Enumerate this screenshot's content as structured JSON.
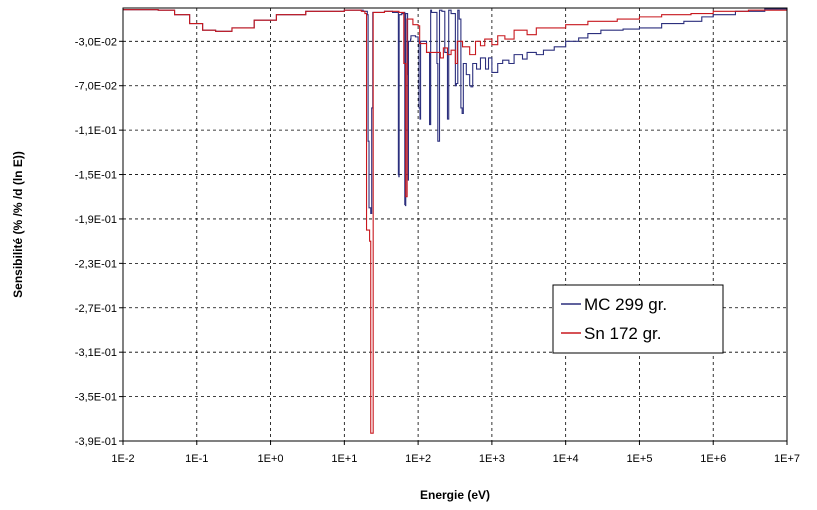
{
  "chart_data": {
    "type": "line",
    "xlabel": "Energie (eV)",
    "ylabel": "Sensibilité (% /% /d (ln E))",
    "x_scale": "log",
    "xlim": [
      0.01,
      10000000
    ],
    "ylim": [
      -0.39,
      0.0
    ],
    "grid": true,
    "legend_placement": "lower-right",
    "x_ticks": [
      {
        "value": 0.01,
        "label": "1E-2"
      },
      {
        "value": 0.1,
        "label": "1E-1"
      },
      {
        "value": 1,
        "label": "1E+0"
      },
      {
        "value": 10,
        "label": "1E+1"
      },
      {
        "value": 100,
        "label": "1E+2"
      },
      {
        "value": 1000,
        "label": "1E+3"
      },
      {
        "value": 10000,
        "label": "1E+4"
      },
      {
        "value": 100000,
        "label": "1E+5"
      },
      {
        "value": 1000000,
        "label": "1E+6"
      },
      {
        "value": 10000000,
        "label": "1E+7"
      }
    ],
    "y_ticks": [
      {
        "value": -0.03,
        "label": "-3,0E-02"
      },
      {
        "value": -0.07,
        "label": "-7,0E-02"
      },
      {
        "value": -0.11,
        "label": "-1,1E-01"
      },
      {
        "value": -0.15,
        "label": "-1,5E-01"
      },
      {
        "value": -0.19,
        "label": "-1,9E-01"
      },
      {
        "value": -0.23,
        "label": "-2,3E-01"
      },
      {
        "value": -0.27,
        "label": "-2,7E-01"
      },
      {
        "value": -0.31,
        "label": "-3,1E-01"
      },
      {
        "value": -0.35,
        "label": "-3,5E-01"
      },
      {
        "value": -0.39,
        "label": "-3,9E-01"
      }
    ],
    "series": [
      {
        "name": "MC 299 gr.",
        "color": "#2b2f7d",
        "points": [
          [
            0.01,
            -0.0015
          ],
          [
            0.03,
            -0.002
          ],
          [
            0.05,
            -0.006
          ],
          [
            0.08,
            -0.014
          ],
          [
            0.12,
            -0.02
          ],
          [
            0.18,
            -0.021
          ],
          [
            0.3,
            -0.018
          ],
          [
            0.6,
            -0.011
          ],
          [
            1.2,
            -0.006
          ],
          [
            3,
            -0.003
          ],
          [
            10,
            -0.002
          ],
          [
            18,
            -0.003
          ],
          [
            20.5,
            -0.006
          ],
          [
            21,
            -0.12
          ],
          [
            21.6,
            -0.18
          ],
          [
            22.8,
            -0.185
          ],
          [
            23.5,
            -0.09
          ],
          [
            24.3,
            -0.004
          ],
          [
            35,
            -0.003
          ],
          [
            45,
            -0.004
          ],
          [
            53.5,
            -0.004
          ],
          [
            54,
            -0.15
          ],
          [
            54.8,
            -0.152
          ],
          [
            55.3,
            -0.006
          ],
          [
            60,
            -0.005
          ],
          [
            65,
            -0.004
          ],
          [
            66,
            -0.177
          ],
          [
            67.5,
            -0.178
          ],
          [
            68,
            -0.005
          ],
          [
            71,
            -0.005
          ],
          [
            72,
            -0.06
          ],
          [
            73.5,
            -0.155
          ],
          [
            74,
            -0.03
          ],
          [
            79,
            -0.028
          ],
          [
            80,
            -0.025
          ],
          [
            92,
            -0.026
          ],
          [
            100,
            -0.03
          ],
          [
            103,
            -0.09
          ],
          [
            106,
            -0.1
          ],
          [
            108,
            -0.03
          ],
          [
            130,
            -0.04
          ],
          [
            140,
            -0.04
          ],
          [
            143,
            -0.105
          ],
          [
            146,
            -0.105
          ],
          [
            148,
            -0.002
          ],
          [
            152,
            -0.004
          ],
          [
            180,
            -0.05
          ],
          [
            185,
            -0.12
          ],
          [
            190,
            -0.12
          ],
          [
            195,
            -0.002
          ],
          [
            210,
            -0.003
          ],
          [
            230,
            -0.04
          ],
          [
            250,
            -0.1
          ],
          [
            255,
            -0.1
          ],
          [
            260,
            -0.002
          ],
          [
            280,
            -0.005
          ],
          [
            320,
            -0.07
          ],
          [
            330,
            -0.068
          ],
          [
            345,
            -0.002
          ],
          [
            360,
            -0.01
          ],
          [
            380,
            -0.09
          ],
          [
            395,
            -0.095
          ],
          [
            410,
            -0.05
          ],
          [
            450,
            -0.06
          ],
          [
            500,
            -0.07
          ],
          [
            520,
            -0.071
          ],
          [
            550,
            -0.05
          ],
          [
            620,
            -0.055
          ],
          [
            700,
            -0.045
          ],
          [
            820,
            -0.055
          ],
          [
            900,
            -0.045
          ],
          [
            1000,
            -0.058
          ],
          [
            1200,
            -0.05
          ],
          [
            1400,
            -0.047
          ],
          [
            1700,
            -0.05
          ],
          [
            2000,
            -0.042
          ],
          [
            2600,
            -0.046
          ],
          [
            3000,
            -0.04
          ],
          [
            4000,
            -0.042
          ],
          [
            5000,
            -0.038
          ],
          [
            7000,
            -0.035
          ],
          [
            10000,
            -0.03
          ],
          [
            15000,
            -0.027
          ],
          [
            20000,
            -0.023
          ],
          [
            30000,
            -0.02
          ],
          [
            60000,
            -0.019
          ],
          [
            100000,
            -0.018
          ],
          [
            150000,
            -0.018
          ],
          [
            200000,
            -0.014
          ],
          [
            400000,
            -0.012
          ],
          [
            700000,
            -0.008
          ],
          [
            1000000,
            -0.006
          ],
          [
            2000000,
            -0.003
          ],
          [
            5000000,
            -0.001
          ],
          [
            10000000,
            0.0
          ]
        ]
      },
      {
        "name": "Sn 172 gr.",
        "color": "#c8181e",
        "points": [
          [
            0.01,
            -0.0015
          ],
          [
            0.03,
            -0.002
          ],
          [
            0.05,
            -0.006
          ],
          [
            0.08,
            -0.014
          ],
          [
            0.12,
            -0.02
          ],
          [
            0.18,
            -0.021
          ],
          [
            0.3,
            -0.018
          ],
          [
            0.6,
            -0.011
          ],
          [
            1.2,
            -0.006
          ],
          [
            3,
            -0.003
          ],
          [
            10,
            -0.002
          ],
          [
            17,
            -0.003
          ],
          [
            19,
            -0.005
          ],
          [
            20,
            -0.2
          ],
          [
            22,
            -0.21
          ],
          [
            22.6,
            -0.21
          ],
          [
            22.8,
            -0.383
          ],
          [
            24.2,
            -0.383
          ],
          [
            24.6,
            -0.004
          ],
          [
            35,
            -0.003
          ],
          [
            55,
            -0.004
          ],
          [
            63,
            -0.004
          ],
          [
            64,
            -0.05
          ],
          [
            66,
            -0.05
          ],
          [
            68,
            -0.17
          ],
          [
            70,
            -0.17
          ],
          [
            71,
            -0.01
          ],
          [
            85,
            -0.015
          ],
          [
            100,
            -0.016
          ],
          [
            105,
            -0.032
          ],
          [
            120,
            -0.032
          ],
          [
            130,
            -0.04
          ],
          [
            170,
            -0.04
          ],
          [
            175,
            -0.04
          ],
          [
            200,
            -0.045
          ],
          [
            220,
            -0.036
          ],
          [
            250,
            -0.042
          ],
          [
            280,
            -0.038
          ],
          [
            320,
            -0.05
          ],
          [
            340,
            -0.03
          ],
          [
            400,
            -0.035
          ],
          [
            500,
            -0.042
          ],
          [
            600,
            -0.03
          ],
          [
            700,
            -0.034
          ],
          [
            800,
            -0.028
          ],
          [
            1000,
            -0.033
          ],
          [
            1200,
            -0.025
          ],
          [
            1500,
            -0.028
          ],
          [
            2000,
            -0.02
          ],
          [
            3000,
            -0.024
          ],
          [
            4000,
            -0.018
          ],
          [
            6000,
            -0.018
          ],
          [
            10000,
            -0.015
          ],
          [
            20000,
            -0.012
          ],
          [
            50000,
            -0.01
          ],
          [
            100000,
            -0.008
          ],
          [
            200000,
            -0.006
          ],
          [
            500000,
            -0.005
          ],
          [
            1000000,
            -0.003
          ],
          [
            3000000,
            -0.002
          ],
          [
            10000000,
            0.0
          ]
        ]
      }
    ]
  }
}
